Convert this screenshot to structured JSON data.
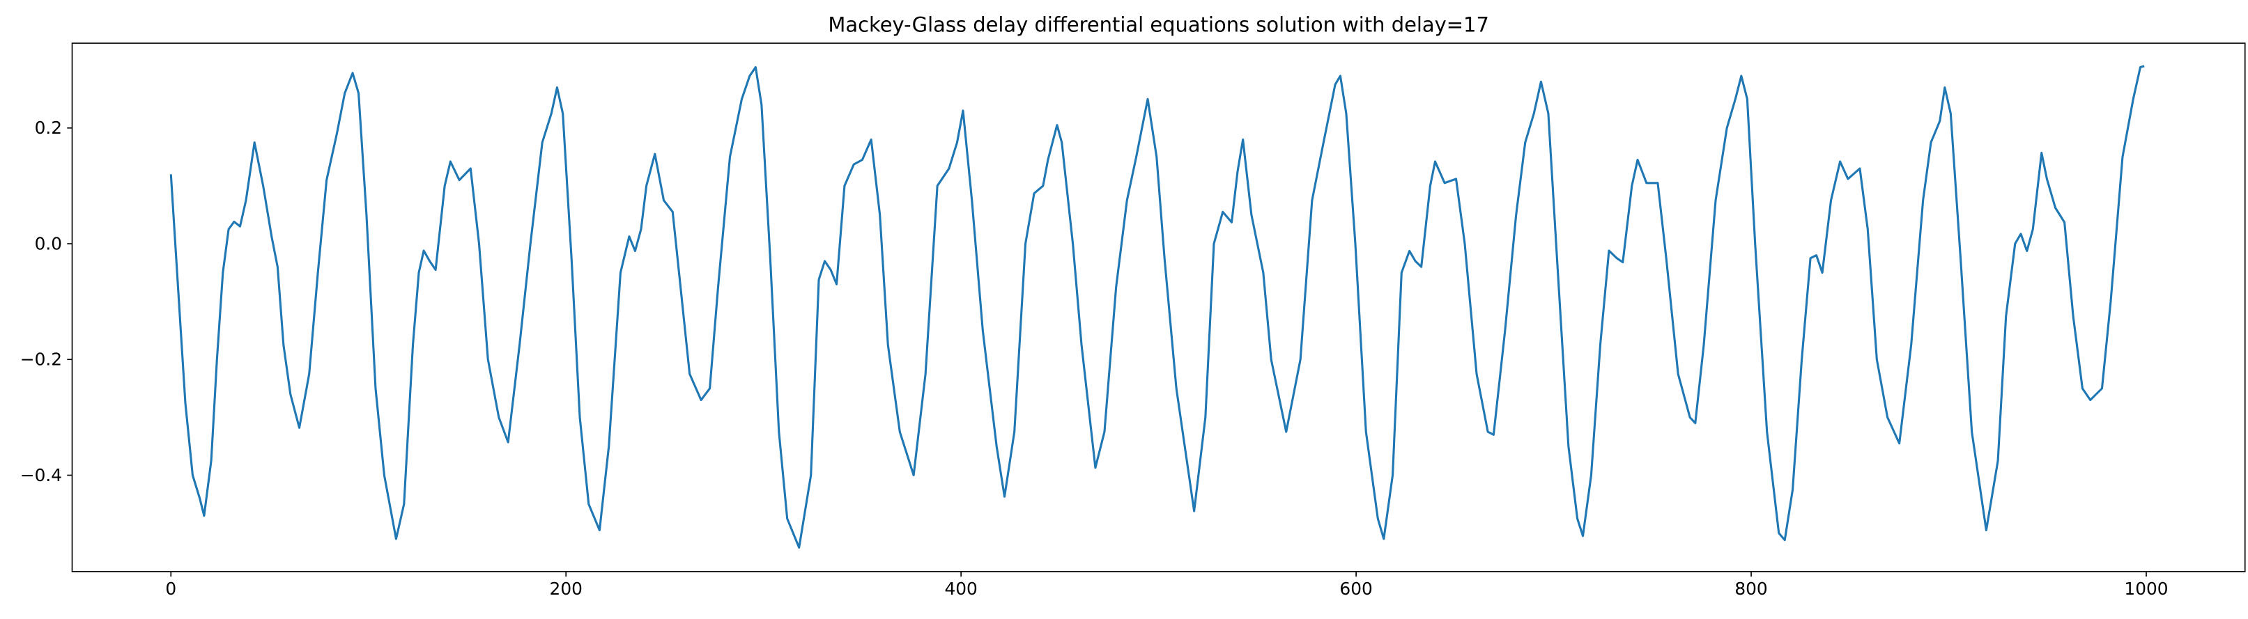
{
  "chart_data": {
    "type": "line",
    "title": "Mackey-Glass delay differential equations solution with delay=17",
    "x": [
      0,
      3.6,
      7.3,
      11,
      14.6,
      16.8,
      20.4,
      23.3,
      26.3,
      29.2,
      32,
      35,
      38,
      42.3,
      46.7,
      51,
      54,
      57,
      60.5,
      65,
      70,
      74.4,
      78.8,
      84,
      88,
      92,
      95,
      99,
      103.6,
      108,
      114,
      118,
      122.5,
      125.5,
      128,
      131,
      134,
      138.6,
      141.5,
      146,
      151.7,
      156,
      160.5,
      166,
      170.7,
      176.5,
      182,
      188,
      192.6,
      195.5,
      198.4,
      202.8,
      207,
      211.5,
      217,
      221.7,
      227.6,
      232,
      235,
      238,
      240.7,
      245,
      249.5,
      254,
      258,
      262.6,
      268.4,
      272.8,
      277,
      283,
      289,
      293,
      296,
      299,
      303.4,
      307.8,
      312,
      318,
      324,
      328,
      331,
      334,
      337,
      341,
      345.7,
      350,
      354.5,
      358.9,
      363,
      369,
      376,
      382,
      388,
      393.9,
      398,
      401,
      405.5,
      411,
      418,
      422,
      427,
      432.6,
      437,
      441.5,
      444,
      448.6,
      451,
      456.6,
      461,
      468,
      472.6,
      478.5,
      484,
      488.7,
      494.5,
      499,
      503,
      509,
      518,
      523.7,
      528,
      532.5,
      537,
      540,
      542.7,
      547,
      553,
      557,
      564.6,
      571.8,
      577.7,
      583.5,
      589.4,
      592,
      595,
      599.6,
      605,
      611,
      614,
      618.5,
      623,
      627,
      630,
      633,
      637.5,
      640,
      644.8,
      650.6,
      655,
      661,
      666.7,
      669.6,
      675.4,
      681,
      685.6,
      690,
      693.6,
      697.3,
      701.7,
      707.5,
      712,
      714.8,
      719,
      723.6,
      728,
      732,
      735,
      739.6,
      742.5,
      747,
      752.7,
      757,
      763,
      769,
      771.7,
      776,
      782,
      787.7,
      792,
      795,
      798,
      802,
      808,
      814,
      817,
      821,
      825.6,
      830,
      833,
      836,
      840.4,
      845,
      849,
      855,
      859,
      863.6,
      869,
      875,
      881,
      887,
      891,
      895.5,
      898,
      901,
      906,
      911.7,
      919,
      924.9,
      929,
      933.6,
      936.5,
      939.6,
      942.6,
      947,
      949.7,
      954,
      958.6,
      963,
      967.7,
      971.7,
      977.6,
      982,
      988,
      993.4,
      997,
      999
    ],
    "series": [
      {
        "color": "#1f77b4",
        "values": [
          0.12,
          -0.075,
          -0.275,
          -0.4,
          -0.44,
          -0.47,
          -0.375,
          -0.2,
          -0.05,
          0.025,
          0.038,
          0.03,
          0.075,
          0.175,
          0.1,
          0.012,
          -0.04,
          -0.175,
          -0.26,
          -0.318,
          -0.225,
          -0.05,
          0.11,
          0.19,
          0.26,
          0.295,
          0.26,
          0.05,
          -0.25,
          -0.4,
          -0.51,
          -0.45,
          -0.175,
          -0.05,
          -0.012,
          -0.03,
          -0.045,
          0.1,
          0.142,
          0.11,
          0.13,
          0,
          -0.2,
          -0.3,
          -0.343,
          -0.175,
          0,
          0.175,
          0.225,
          0.27,
          0.225,
          -0.025,
          -0.3,
          -0.45,
          -0.495,
          -0.35,
          -0.05,
          0.0125,
          -0.0125,
          0.025,
          0.1,
          0.155,
          0.075,
          0.055,
          -0.075,
          -0.225,
          -0.27,
          -0.25,
          -0.075,
          0.15,
          0.25,
          0.29,
          0.305,
          0.24,
          -0.025,
          -0.325,
          -0.475,
          -0.525,
          -0.4,
          -0.062,
          -0.03,
          -0.045,
          -0.07,
          0.1,
          0.137,
          0.145,
          0.18,
          0.05,
          -0.175,
          -0.325,
          -0.4,
          -0.225,
          0.1,
          0.13,
          0.175,
          0.23,
          0.075,
          -0.15,
          -0.35,
          -0.437,
          -0.325,
          0,
          0.087,
          0.1,
          0.145,
          0.205,
          0.175,
          0,
          -0.175,
          -0.387,
          -0.325,
          -0.075,
          0.075,
          0.15,
          0.25,
          0.15,
          -0.025,
          -0.25,
          -0.462,
          -0.3,
          0,
          0.055,
          0.037,
          0.125,
          0.18,
          0.05,
          -0.05,
          -0.2,
          -0.325,
          -0.2,
          0.075,
          0.175,
          0.275,
          0.29,
          0.225,
          0,
          -0.325,
          -0.475,
          -0.51,
          -0.4,
          -0.05,
          -0.0125,
          -0.03,
          -0.04,
          0.1,
          0.142,
          0.105,
          0.112,
          0,
          -0.225,
          -0.325,
          -0.33,
          -0.15,
          0.05,
          0.175,
          0.225,
          0.28,
          0.225,
          -0.025,
          -0.35,
          -0.475,
          -0.505,
          -0.4,
          -0.175,
          -0.012,
          -0.025,
          -0.032,
          0.1,
          0.145,
          0.105,
          0.105,
          -0.025,
          -0.225,
          -0.3,
          -0.31,
          -0.175,
          0.075,
          0.2,
          0.25,
          0.29,
          0.25,
          0,
          -0.325,
          -0.5,
          -0.512,
          -0.425,
          -0.2,
          -0.025,
          -0.02,
          -0.05,
          0.075,
          0.142,
          0.112,
          0.13,
          0.025,
          -0.2,
          -0.3,
          -0.345,
          -0.175,
          0.075,
          0.175,
          0.212,
          0.27,
          0.225,
          -0.025,
          -0.325,
          -0.495,
          -0.375,
          -0.125,
          0,
          0.017,
          -0.0125,
          0.025,
          0.157,
          0.112,
          0.062,
          0.037,
          -0.125,
          -0.25,
          -0.27,
          -0.25,
          -0.1,
          0.15,
          0.25,
          0.305,
          0.307
        ]
      }
    ],
    "xlim": [
      -50,
      1050
    ],
    "ylim": [
      -0.5665,
      0.3465
    ],
    "xticks": [
      0,
      200,
      400,
      600,
      800,
      1000
    ],
    "yticks": [
      {
        "value": -0.4,
        "label": "−0.4"
      },
      {
        "value": -0.2,
        "label": "−0.2"
      },
      {
        "value": 0,
        "label": "0.0"
      },
      0.2
    ]
  }
}
